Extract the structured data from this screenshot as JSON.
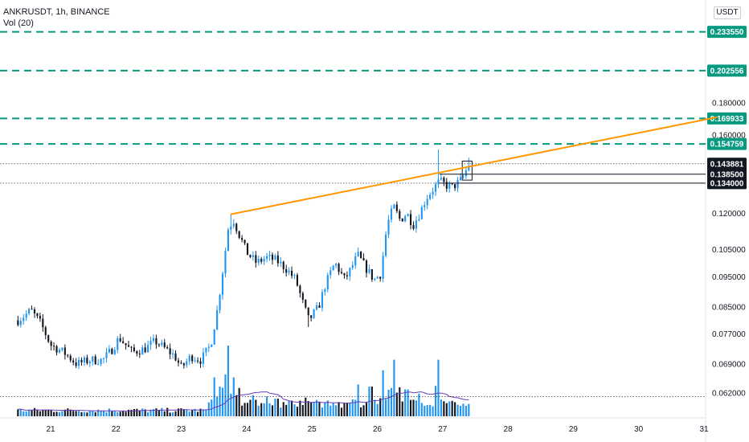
{
  "legend": {
    "symbol_line": "ANKRUSDT, 1h, BINANCE",
    "indicator": "Vol (20)"
  },
  "currency_button": "USDT",
  "colors": {
    "up": "#2196f3",
    "down": "#131722",
    "volume_up": "#2196f3",
    "volume_down": "#131722",
    "volume_ma": "#673ab7",
    "trendline": "#ff9800",
    "dashed_level": "#089981",
    "tag_dark": "#131722"
  },
  "chart_data": {
    "type": "candlestick",
    "scale": "log",
    "x_range": [
      20.5,
      31
    ],
    "y_range": [
      0.0565,
      0.265
    ],
    "price_ticks": [
      0.18,
      0.16,
      0.12,
      0.105,
      0.095,
      0.085,
      0.077,
      0.069,
      0.062
    ],
    "price_tick_labels": [
      "0.180000",
      "0.160000",
      "0.120000",
      "0.105000",
      "0.095000",
      "0.085000",
      "0.077000",
      "0.069000",
      "0.062000"
    ],
    "x_ticks": [
      21,
      22,
      23,
      24,
      25,
      26,
      27,
      28,
      29,
      30,
      31
    ],
    "x_tick_labels": [
      "21",
      "22",
      "23",
      "24",
      "25",
      "26",
      "27",
      "28",
      "29",
      "30",
      "31"
    ],
    "dashed_levels": [
      {
        "value": 0.23355,
        "label": "0.233550"
      },
      {
        "value": 0.202556,
        "label": "0.202556"
      },
      {
        "value": 0.169933,
        "label": "0.169933"
      },
      {
        "value": 0.154759,
        "label": "0.154759"
      }
    ],
    "solid_levels": [
      {
        "value": 0.1385,
        "label": "0.138500"
      },
      {
        "value": 0.134,
        "label": "0.134000"
      }
    ],
    "last_price": {
      "value": 0.143881,
      "label": "0.143881"
    },
    "dotted_levels": [
      0.143881,
      0.134,
      0.0612
    ],
    "trendline": {
      "from": [
        23.75,
        0.1195
      ],
      "to": [
        31.2,
        0.1707
      ]
    },
    "anchors": [
      [
        20.5,
        0.081
      ],
      [
        20.7,
        0.084
      ],
      [
        20.85,
        0.08
      ],
      [
        21.0,
        0.074
      ],
      [
        21.2,
        0.072
      ],
      [
        21.4,
        0.069
      ],
      [
        21.6,
        0.07
      ],
      [
        21.8,
        0.07
      ],
      [
        21.95,
        0.073
      ],
      [
        22.05,
        0.076
      ],
      [
        22.25,
        0.072
      ],
      [
        22.45,
        0.073
      ],
      [
        22.6,
        0.075
      ],
      [
        22.75,
        0.073
      ],
      [
        22.9,
        0.071
      ],
      [
        23.0,
        0.068
      ],
      [
        23.15,
        0.071
      ],
      [
        23.3,
        0.07
      ],
      [
        23.45,
        0.074
      ],
      [
        23.55,
        0.084
      ],
      [
        23.65,
        0.1
      ],
      [
        23.72,
        0.114
      ],
      [
        23.8,
        0.117
      ],
      [
        23.9,
        0.11
      ],
      [
        24.0,
        0.104
      ],
      [
        24.15,
        0.1
      ],
      [
        24.3,
        0.102
      ],
      [
        24.45,
        0.101
      ],
      [
        24.6,
        0.098
      ],
      [
        24.75,
        0.094
      ],
      [
        24.85,
        0.087
      ],
      [
        24.95,
        0.081
      ],
      [
        25.1,
        0.085
      ],
      [
        25.2,
        0.092
      ],
      [
        25.35,
        0.1
      ],
      [
        25.5,
        0.094
      ],
      [
        25.6,
        0.098
      ],
      [
        25.7,
        0.103
      ],
      [
        25.8,
        0.099
      ],
      [
        25.95,
        0.094
      ],
      [
        26.05,
        0.096
      ],
      [
        26.15,
        0.115
      ],
      [
        26.25,
        0.123
      ],
      [
        26.35,
        0.117
      ],
      [
        26.45,
        0.12
      ],
      [
        26.55,
        0.115
      ],
      [
        26.65,
        0.12
      ],
      [
        26.75,
        0.127
      ],
      [
        26.85,
        0.131
      ],
      [
        26.95,
        0.135
      ],
      [
        27.05,
        0.133
      ],
      [
        27.15,
        0.132
      ],
      [
        27.3,
        0.136
      ],
      [
        27.4,
        0.1435
      ]
    ],
    "candle_count": 164,
    "volume_spikes": [
      [
        23.5,
        0.55
      ],
      [
        23.6,
        0.42
      ],
      [
        23.72,
        1.0
      ],
      [
        23.8,
        0.55
      ],
      [
        23.9,
        0.4
      ],
      [
        24.1,
        0.3
      ],
      [
        24.3,
        0.28
      ],
      [
        24.7,
        0.22
      ],
      [
        25.0,
        0.2
      ],
      [
        25.7,
        0.45
      ],
      [
        25.9,
        0.42
      ],
      [
        26.1,
        0.65
      ],
      [
        26.25,
        0.8
      ],
      [
        26.45,
        0.38
      ],
      [
        26.65,
        0.32
      ],
      [
        26.95,
        0.8
      ],
      [
        27.2,
        0.18
      ]
    ]
  }
}
